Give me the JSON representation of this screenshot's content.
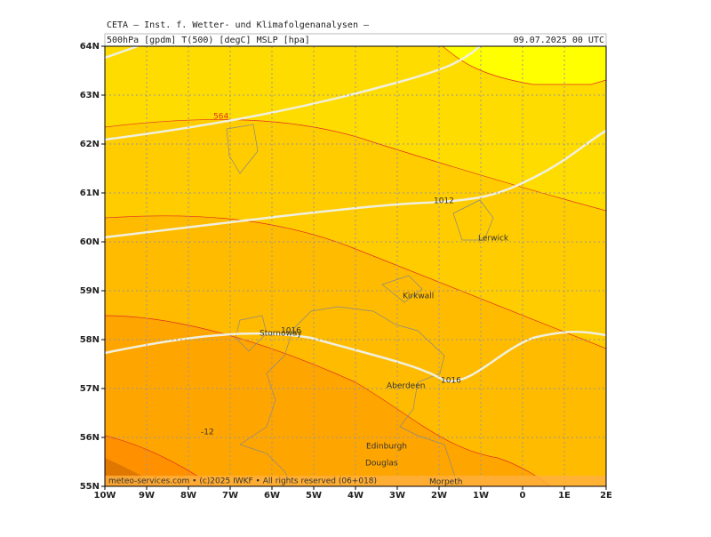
{
  "header": {
    "institute": "CETA – Inst. f. Wetter- und Klimafolgenanalysen –",
    "fields": "500hPa [gpdm] T(500) [degC] MSLP [hpa]",
    "valid_time": "09.07.2025 00 UTC"
  },
  "axes": {
    "latitude_labels": [
      "64N",
      "63N",
      "62N",
      "61N",
      "60N",
      "59N",
      "58N",
      "57N",
      "56N",
      "55N"
    ],
    "longitude_labels": [
      "10W",
      "9W",
      "8W",
      "7W",
      "6W",
      "5W",
      "4W",
      "3W",
      "2W",
      "1W",
      "0",
      "1E",
      "2E"
    ]
  },
  "places": [
    "Lerwick",
    "Kirkwall",
    "Stornoway",
    "Aberdeen",
    "Edinburgh",
    "Douglas",
    "Morpeth"
  ],
  "contour_labels": [
    "564",
    "1012",
    "1016",
    "1016",
    "-12"
  ],
  "footer": "meteo-services.com • (c)2025 IWKF • All rights reserved (06+018)"
}
